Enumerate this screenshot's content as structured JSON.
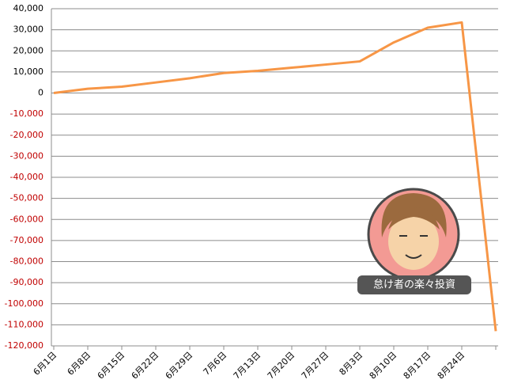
{
  "chart_data": {
    "type": "line",
    "categories": [
      "6月1日",
      "6月8日",
      "6月15日",
      "6月22日",
      "6月29日",
      "7月6日",
      "7月13日",
      "7月20日",
      "7月27日",
      "8月3日",
      "8月10日",
      "8月17日",
      "8月24日",
      null
    ],
    "values": [
      0,
      2000,
      3000,
      5000,
      7000,
      9500,
      10500,
      12000,
      13500,
      15000,
      24000,
      31000,
      33500,
      -113000
    ],
    "color": "#f79646",
    "ylim": [
      -120000,
      40000
    ],
    "yticks": [
      {
        "value": -120000,
        "label": "-120,000"
      },
      {
        "value": -110000,
        "label": "-110,000"
      },
      {
        "value": -100000,
        "label": "-100,000"
      },
      {
        "value": -90000,
        "label": "-90,000"
      },
      {
        "value": -80000,
        "label": "-80,000"
      },
      {
        "value": -70000,
        "label": "-70,000"
      },
      {
        "value": -60000,
        "label": "-60,000"
      },
      {
        "value": -50000,
        "label": "-50,000"
      },
      {
        "value": -40000,
        "label": "-40,000"
      },
      {
        "value": -30000,
        "label": "-30,000"
      },
      {
        "value": -20000,
        "label": "-20,000"
      },
      {
        "value": -10000,
        "label": "-10,000"
      },
      0,
      {
        "value": 10000,
        "label": "10,000"
      },
      {
        "value": 20000,
        "label": "20,000"
      },
      {
        "value": 30000,
        "label": "30,000"
      },
      {
        "value": 40000,
        "label": "40,000"
      }
    ],
    "grid": true,
    "negative_tick_color": "#c00000"
  },
  "watermark": {
    "label": "怠け者の楽々投資"
  }
}
